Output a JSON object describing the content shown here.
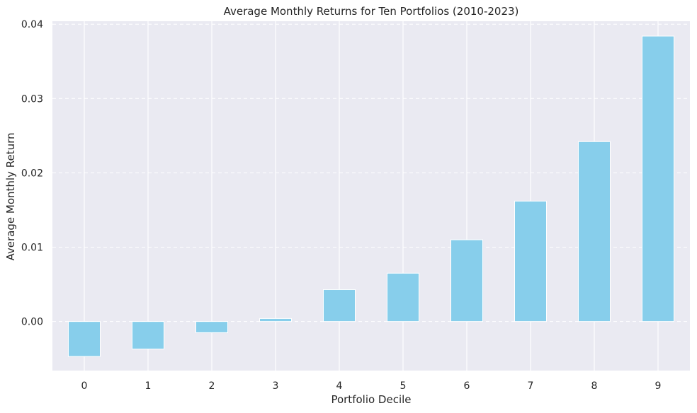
{
  "chart_data": {
    "type": "bar",
    "title": "Average Monthly Returns for Ten Portfolios (2010-2023)",
    "xlabel": "Portfolio Decile",
    "ylabel": "Average Monthly Return",
    "categories": [
      "0",
      "1",
      "2",
      "3",
      "4",
      "5",
      "6",
      "7",
      "8",
      "9"
    ],
    "values": [
      -0.0047,
      -0.0037,
      -0.0015,
      0.0004,
      0.0043,
      0.0065,
      0.011,
      0.0162,
      0.0242,
      0.0384
    ],
    "ylim": [
      -0.0066,
      0.0404
    ],
    "yticks": [
      0.0,
      0.01,
      0.02,
      0.03,
      0.04
    ],
    "ytick_labels": [
      "0.00",
      "0.01",
      "0.02",
      "0.03",
      "0.04"
    ],
    "grid": true,
    "bar_color": "#87ceeb",
    "background_color": "#eaeaf2",
    "grid_color": "#ffffff"
  }
}
